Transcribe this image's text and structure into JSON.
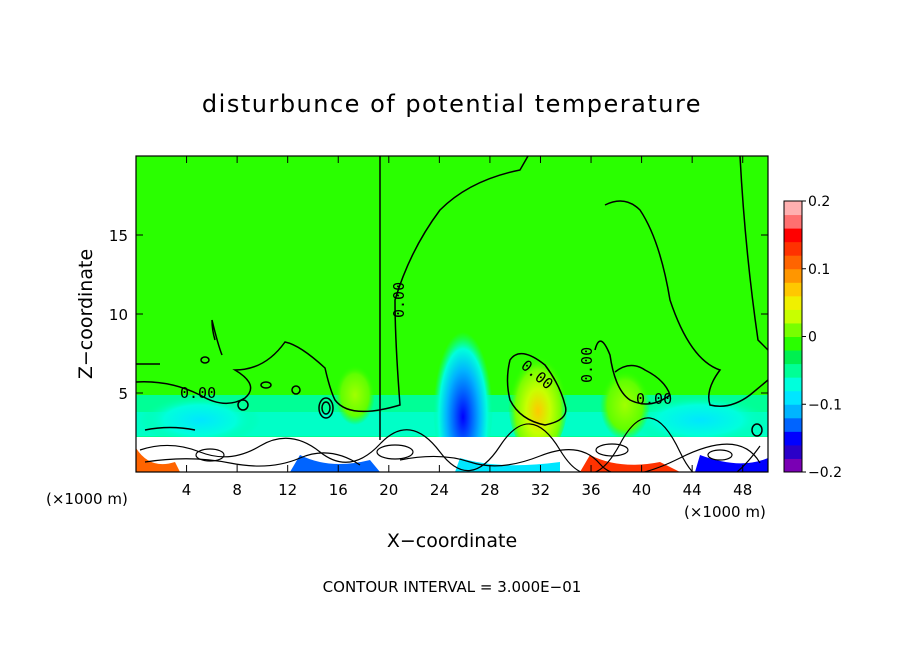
{
  "chart_data": {
    "type": "heatmap",
    "title": "disturbunce of potential temperature",
    "xlabel": "X−coordinate",
    "ylabel": "Z−coordinate",
    "x_unit_left": "(×1000 m)",
    "x_unit_right": "(×1000 m)",
    "xlim": [
      0,
      50
    ],
    "ylim": [
      0,
      20
    ],
    "x_ticks": [
      4,
      8,
      12,
      16,
      20,
      24,
      28,
      32,
      36,
      40,
      44,
      48
    ],
    "y_ticks": [
      5,
      10,
      15
    ],
    "contour_labels": [
      "0.00",
      "0.00",
      "0.00",
      "0.00",
      "0.00"
    ],
    "contour_interval_text": "CONTOUR INTERVAL = 3.000E−01",
    "colorbar": {
      "ticks": [
        "0.2",
        "0.1",
        "0",
        "−0.1",
        "−0.2"
      ],
      "tick_values": [
        0.2,
        0.1,
        0,
        -0.1,
        -0.2
      ],
      "range": [
        -0.2,
        0.2
      ],
      "colors": [
        "#7a00b4",
        "#2a00c8",
        "#0000ff",
        "#0064ff",
        "#00b4ff",
        "#00e6ff",
        "#00ffdc",
        "#00ff96",
        "#00f050",
        "#2aff00",
        "#78ff00",
        "#c8ff00",
        "#f0f000",
        "#ffc800",
        "#ff9600",
        "#ff6400",
        "#ff3200",
        "#ff0000",
        "#ff7070",
        "#ffb0b0"
      ]
    }
  }
}
